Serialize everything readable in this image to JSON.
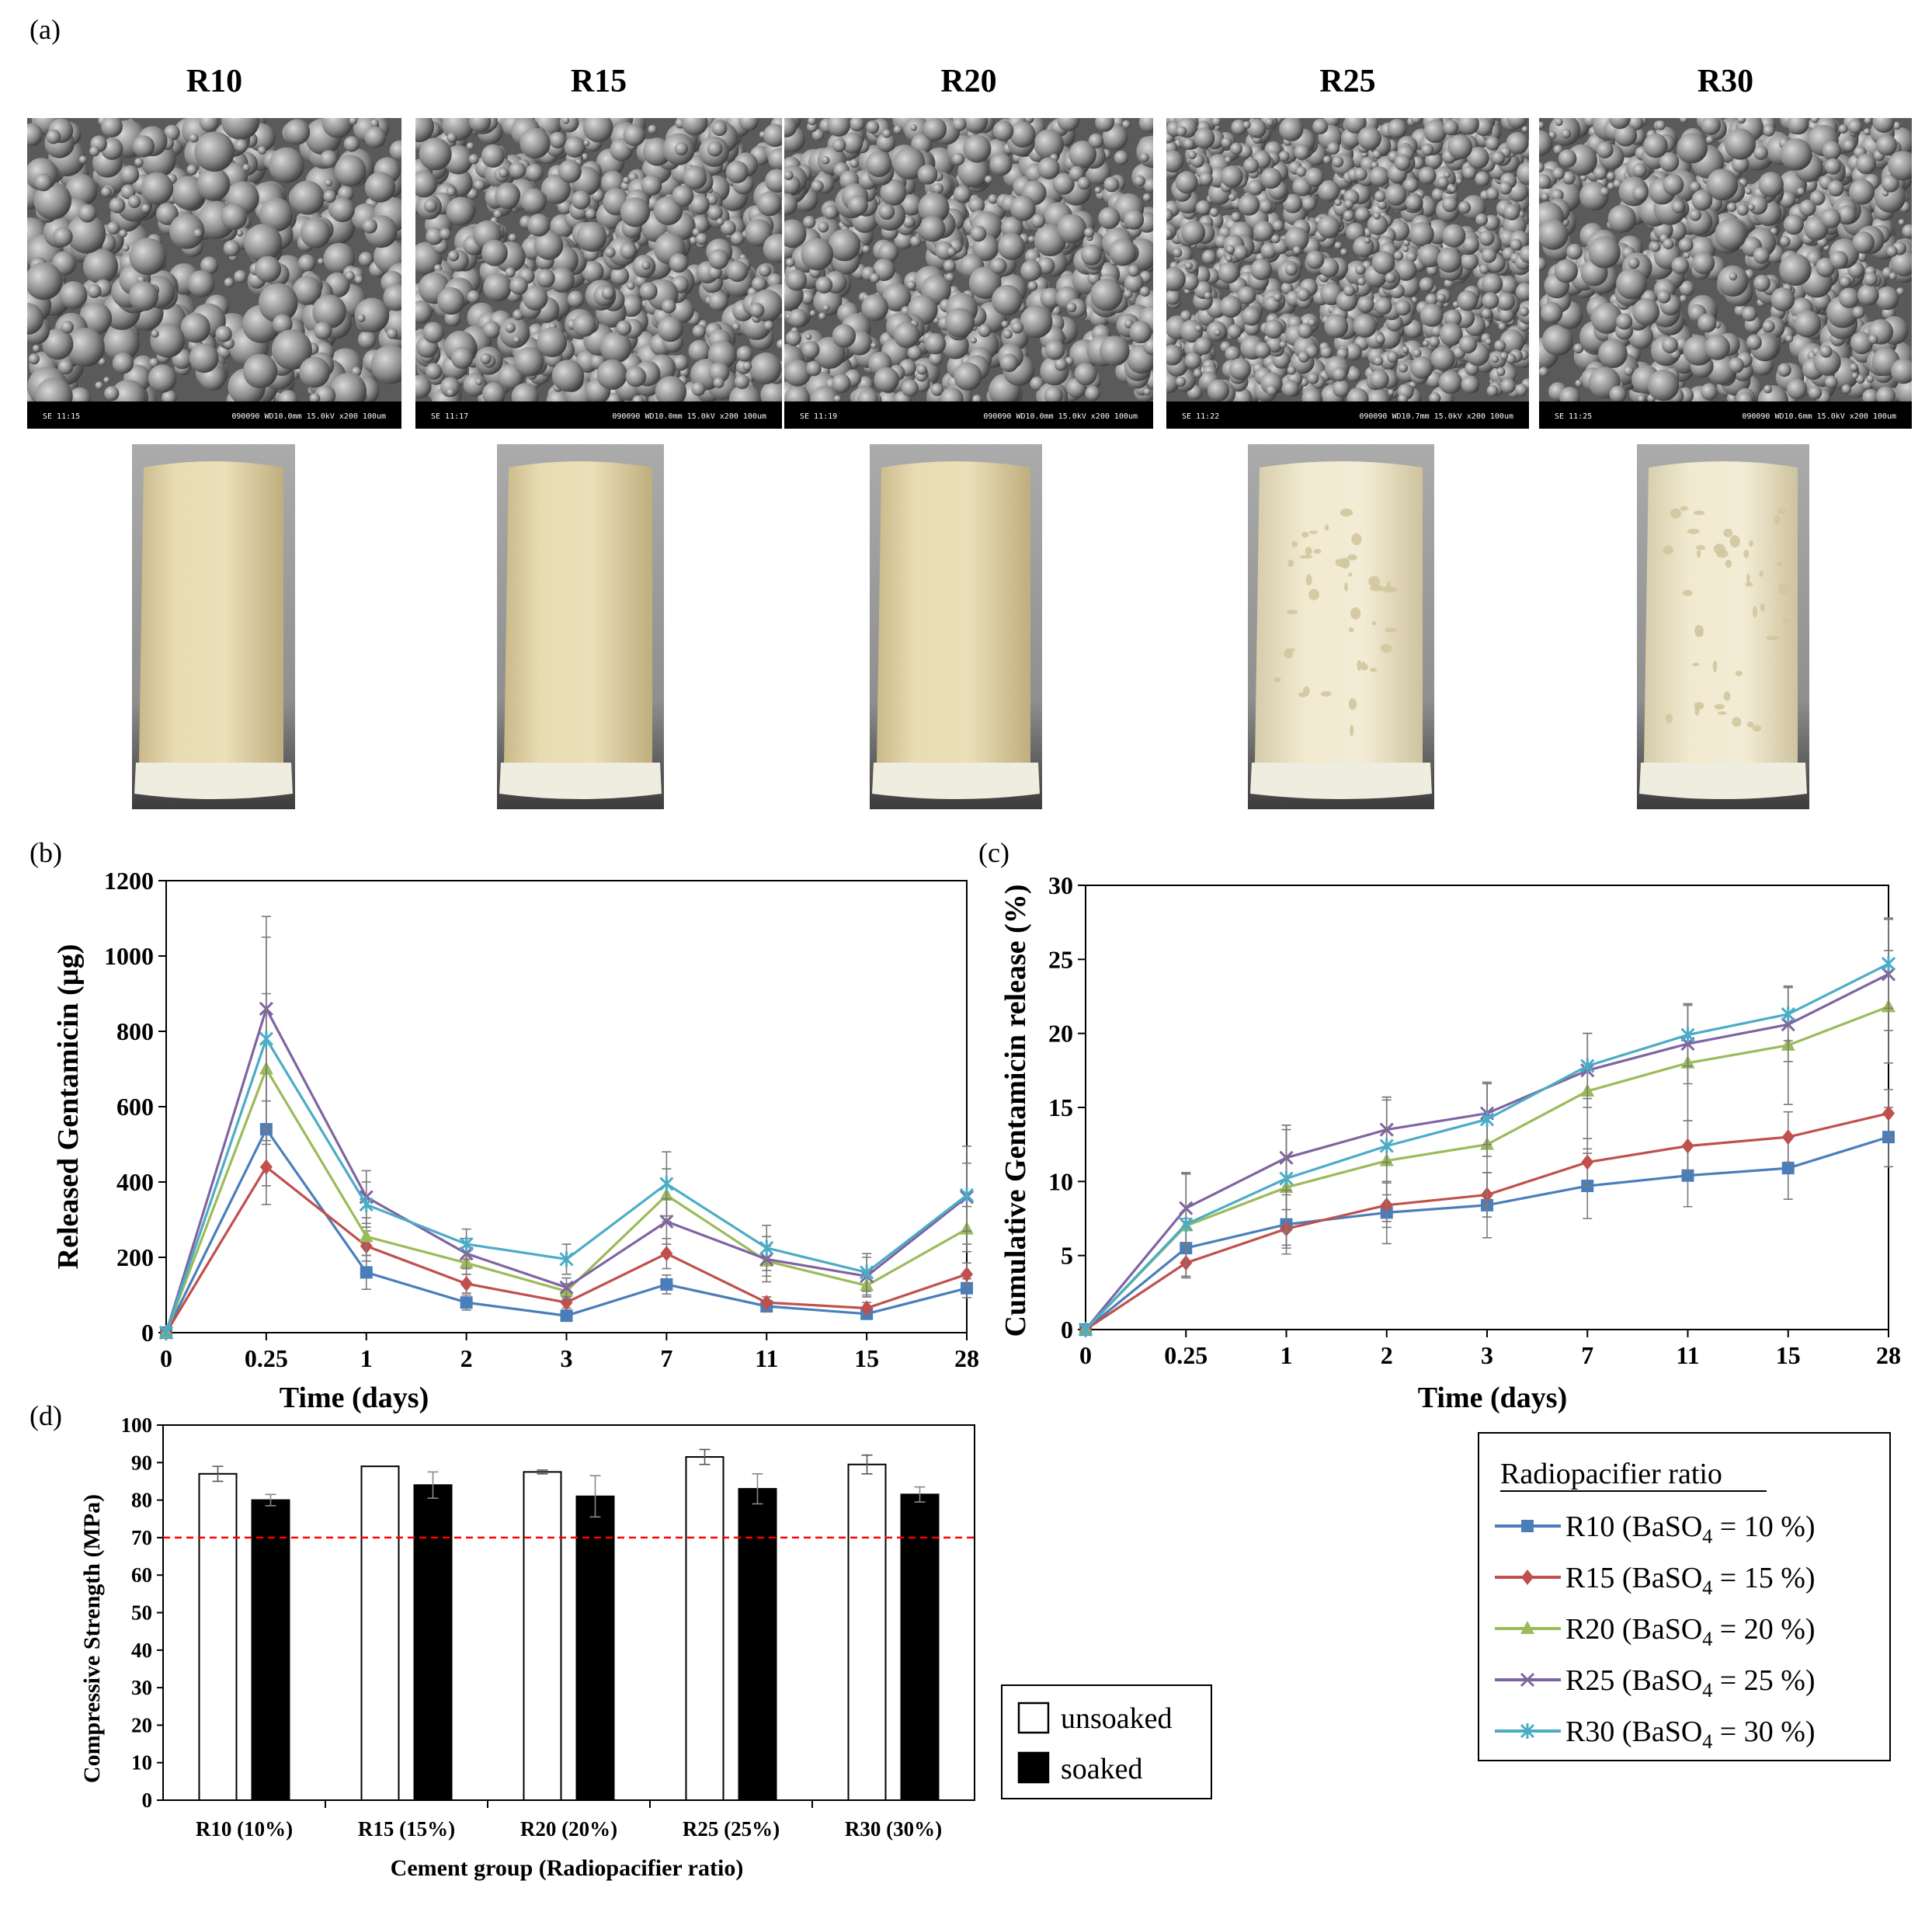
{
  "panel_labels": {
    "a": "(a)",
    "b": "(b)",
    "c": "(c)",
    "d": "(d)"
  },
  "samples": [
    {
      "name": "R10",
      "sem_caption_left": "SE    11:15",
      "sem_caption_right": "090090 WD10.0mm 15.0kV x200  100um"
    },
    {
      "name": "R15",
      "sem_caption_left": "SE    11:17",
      "sem_caption_right": "090090 WD10.0mm 15.0kV x200  100um"
    },
    {
      "name": "R20",
      "sem_caption_left": "SE    11:19",
      "sem_caption_right": "090090 WD10.0mm 15.0kV x200  100um"
    },
    {
      "name": "R25",
      "sem_caption_left": "SE    11:22",
      "sem_caption_right": "090090 WD10.7mm 15.0kV x200  100um"
    },
    {
      "name": "R30",
      "sem_caption_left": "SE    11:25",
      "sem_caption_right": "090090 WD10.6mm 15.0kV x200  100um"
    }
  ],
  "colors": {
    "R10": "#4a7ebb",
    "R15": "#c0504d",
    "R20": "#9bbb59",
    "R25": "#8064a2",
    "R30": "#4bacc6",
    "threshold": "#ff0000"
  },
  "chart_data": [
    {
      "id": "b",
      "type": "line",
      "xlabel": "Time (days)",
      "ylabel": "Released Gentamicin (µg)",
      "categories": [
        "0",
        "0.25",
        "1",
        "2",
        "3",
        "7",
        "11",
        "15",
        "28"
      ],
      "ylim": [
        0,
        1200
      ],
      "yticks": [
        0,
        200,
        400,
        600,
        800,
        1000,
        1200
      ],
      "series": [
        {
          "name": "R10",
          "marker": "square",
          "values": [
            0,
            540,
            160,
            80,
            45,
            128,
            70,
            50,
            118
          ],
          "err": [
            0,
            150,
            45,
            20,
            10,
            25,
            15,
            10,
            25
          ]
        },
        {
          "name": "R15",
          "marker": "diamond",
          "values": [
            0,
            440,
            230,
            130,
            80,
            210,
            80,
            65,
            155
          ],
          "err": [
            0,
            100,
            40,
            25,
            15,
            40,
            15,
            15,
            30
          ]
        },
        {
          "name": "R20",
          "marker": "triangle",
          "values": [
            0,
            700,
            255,
            185,
            110,
            365,
            190,
            125,
            275
          ],
          "err": [
            0,
            200,
            50,
            30,
            20,
            70,
            40,
            30,
            60
          ]
        },
        {
          "name": "R25",
          "marker": "x",
          "values": [
            0,
            860,
            360,
            210,
            120,
            295,
            195,
            150,
            360
          ],
          "err": [
            0,
            245,
            70,
            40,
            25,
            60,
            60,
            50,
            90
          ]
        },
        {
          "name": "R30",
          "marker": "star",
          "values": [
            0,
            780,
            340,
            235,
            195,
            395,
            225,
            160,
            365
          ],
          "err": [
            0,
            270,
            60,
            40,
            40,
            85,
            60,
            50,
            130
          ]
        }
      ]
    },
    {
      "id": "c",
      "type": "line",
      "xlabel": "Time (days)",
      "ylabel": "Cumulative Gentamicin release (%)",
      "categories": [
        "0",
        "0.25",
        "1",
        "2",
        "3",
        "7",
        "11",
        "15",
        "28"
      ],
      "ylim": [
        0,
        30
      ],
      "yticks": [
        0,
        5,
        10,
        15,
        20,
        25,
        30
      ],
      "series": [
        {
          "name": "R10",
          "marker": "square",
          "values": [
            0,
            5.5,
            7.1,
            7.9,
            8.4,
            9.7,
            10.4,
            10.9,
            13.0
          ],
          "err": [
            0,
            2.0,
            2.0,
            2.1,
            2.2,
            2.2,
            2.1,
            2.1,
            2.0
          ]
        },
        {
          "name": "R15",
          "marker": "diamond",
          "values": [
            0,
            4.5,
            6.8,
            8.4,
            9.1,
            11.3,
            12.4,
            13.0,
            14.6
          ],
          "err": [
            0,
            1.0,
            1.3,
            1.5,
            1.5,
            1.6,
            1.7,
            1.7,
            1.6
          ]
        },
        {
          "name": "R20",
          "marker": "triangle",
          "values": [
            0,
            7.0,
            9.6,
            11.4,
            12.5,
            16.1,
            18.0,
            19.2,
            21.8
          ],
          "err": [
            0,
            3.5,
            3.9,
            4.1,
            4.1,
            3.9,
            3.9,
            4.0,
            3.8
          ]
        },
        {
          "name": "R25",
          "marker": "x",
          "values": [
            0,
            8.2,
            11.6,
            13.5,
            14.6,
            17.5,
            19.3,
            20.6,
            24.0
          ],
          "err": [
            0,
            2.4,
            2.2,
            2.2,
            2.1,
            2.5,
            2.7,
            2.5,
            3.8
          ]
        },
        {
          "name": "R30",
          "marker": "star",
          "values": [
            0,
            7.1,
            10.2,
            12.4,
            14.2,
            17.8,
            19.9,
            21.3,
            24.7
          ],
          "err": [
            0,
            3.5,
            3.6,
            3.3,
            2.5,
            2.2,
            2.1,
            1.8,
            3.0
          ]
        }
      ]
    },
    {
      "id": "d",
      "type": "bar",
      "xlabel": "Cement group (Radiopacifier ratio)",
      "ylabel": "Compressive Strength (MPa)",
      "categories": [
        "R10 (10%)",
        "R15 (15%)",
        "R20 (20%)",
        "R25 (25%)",
        "R30 (30%)"
      ],
      "ylim": [
        0,
        100
      ],
      "yticks": [
        0,
        10,
        20,
        30,
        40,
        50,
        60,
        70,
        80,
        90,
        100
      ],
      "threshold": 70,
      "series": [
        {
          "name": "unsoaked",
          "fill": "#ffffff",
          "values": [
            87,
            89,
            87.5,
            91.5,
            89.5
          ],
          "err": [
            2,
            0,
            0.5,
            2,
            2.5
          ]
        },
        {
          "name": "soaked",
          "fill": "#000000",
          "values": [
            80,
            84,
            81,
            83,
            81.5
          ],
          "err": [
            1.5,
            3.5,
            5.5,
            4,
            2
          ]
        }
      ]
    }
  ],
  "legend_lines": {
    "title": "Radiopacifier ratio",
    "entries": [
      {
        "key": "R10",
        "prefix": "R10 (BaSO",
        "sub": "4",
        "suffix": " = 10 %)"
      },
      {
        "key": "R15",
        "prefix": "R15 (BaSO",
        "sub": "4",
        "suffix": " = 15 %)"
      },
      {
        "key": "R20",
        "prefix": "R20 (BaSO",
        "sub": "4",
        "suffix": " = 20 %)"
      },
      {
        "key": "R25",
        "prefix": "R25 (BaSO",
        "sub": "4",
        "suffix": " = 25 %)"
      },
      {
        "key": "R30",
        "prefix": "R30 (BaSO",
        "sub": "4",
        "suffix": " = 30 %)"
      }
    ]
  },
  "legend_bars": {
    "unsoaked": "unsoaked",
    "soaked": "soaked"
  }
}
